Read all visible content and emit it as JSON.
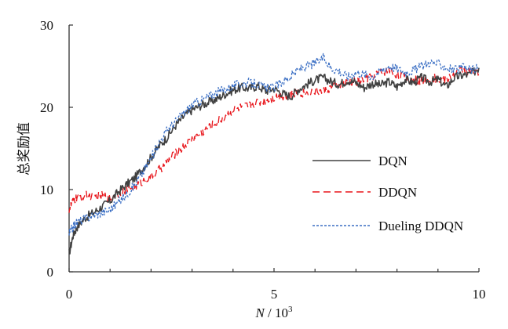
{
  "chart_data": {
    "type": "line",
    "title": "",
    "xlabel_var": "N",
    "xlabel_unit": " / 10",
    "xlabel_sup": "3",
    "ylabel": "总奖励值",
    "xlim": [
      0,
      10
    ],
    "ylim": [
      0,
      30
    ],
    "xticks": [
      0,
      5,
      10
    ],
    "yticks": [
      0,
      10,
      20,
      30
    ],
    "grid": false,
    "legend_position": "right",
    "series": [
      {
        "name": "DQN",
        "color": "#404040",
        "dash": "solid",
        "x": [
          0,
          0.1,
          0.2,
          0.4,
          0.6,
          0.8,
          1.0,
          1.2,
          1.4,
          1.6,
          1.8,
          2.0,
          2.2,
          2.4,
          2.6,
          2.8,
          3.0,
          3.2,
          3.4,
          3.6,
          3.8,
          4.0,
          4.2,
          4.4,
          4.6,
          4.8,
          5.0,
          5.2,
          5.4,
          5.6,
          5.8,
          6.0,
          6.2,
          6.4,
          6.6,
          6.8,
          7.0,
          7.2,
          7.4,
          7.6,
          7.8,
          8.0,
          8.2,
          8.4,
          8.6,
          8.8,
          9.0,
          9.2,
          9.4,
          9.6,
          9.8,
          10.0
        ],
        "y": [
          2.2,
          4.5,
          5.5,
          6.6,
          7.2,
          7.9,
          8.6,
          9.7,
          10.6,
          11.4,
          12.6,
          13.9,
          15.3,
          16.4,
          17.8,
          18.9,
          19.7,
          20.2,
          20.6,
          21.0,
          21.6,
          22.1,
          22.4,
          22.3,
          22.6,
          22.0,
          22.3,
          21.7,
          21.3,
          22.2,
          22.8,
          23.3,
          23.6,
          23.1,
          22.8,
          23.3,
          23.0,
          22.4,
          22.9,
          22.7,
          23.1,
          22.5,
          23.4,
          23.0,
          23.6,
          23.1,
          23.4,
          22.5,
          23.6,
          23.9,
          24.0,
          24.8
        ]
      },
      {
        "name": "DDQN",
        "color": "#e8141a",
        "dash": "dashed",
        "x": [
          0,
          0.1,
          0.2,
          0.4,
          0.6,
          0.8,
          1.0,
          1.2,
          1.4,
          1.6,
          1.8,
          2.0,
          2.2,
          2.4,
          2.6,
          2.8,
          3.0,
          3.2,
          3.4,
          3.6,
          3.8,
          4.0,
          4.2,
          4.4,
          4.6,
          4.8,
          5.0,
          5.2,
          5.4,
          5.6,
          5.8,
          6.0,
          6.2,
          6.4,
          6.6,
          6.8,
          7.0,
          7.2,
          7.4,
          7.6,
          7.8,
          8.0,
          8.2,
          8.4,
          8.6,
          8.8,
          9.0,
          9.2,
          9.4,
          9.6,
          9.8,
          10.0
        ],
        "y": [
          7.6,
          8.6,
          9.0,
          9.3,
          9.1,
          9.3,
          9.0,
          9.6,
          10.0,
          10.4,
          11.0,
          11.6,
          12.4,
          13.4,
          14.4,
          15.2,
          16.1,
          16.8,
          17.5,
          18.2,
          18.9,
          19.6,
          20.0,
          20.2,
          20.6,
          20.9,
          21.2,
          21.4,
          21.5,
          21.8,
          21.7,
          22.0,
          21.9,
          22.4,
          22.6,
          23.0,
          23.1,
          23.4,
          23.8,
          24.2,
          24.6,
          24.0,
          23.6,
          23.3,
          23.2,
          23.6,
          23.4,
          23.3,
          24.0,
          24.6,
          24.3,
          24.1
        ]
      },
      {
        "name": "Dueling DDQN",
        "color": "#3b6fc4",
        "dash": "dotted",
        "x": [
          0,
          0.1,
          0.2,
          0.4,
          0.6,
          0.8,
          1.0,
          1.2,
          1.4,
          1.6,
          1.8,
          2.0,
          2.2,
          2.4,
          2.6,
          2.8,
          3.0,
          3.2,
          3.4,
          3.6,
          3.8,
          4.0,
          4.2,
          4.4,
          4.6,
          4.8,
          5.0,
          5.2,
          5.4,
          5.6,
          5.8,
          6.0,
          6.2,
          6.4,
          6.6,
          6.8,
          7.0,
          7.2,
          7.4,
          7.6,
          7.8,
          8.0,
          8.2,
          8.4,
          8.6,
          8.8,
          9.0,
          9.2,
          9.4,
          9.6,
          9.8,
          10.0
        ],
        "y": [
          4.6,
          5.5,
          6.0,
          6.5,
          6.9,
          7.2,
          7.6,
          8.5,
          9.4,
          10.6,
          12.1,
          13.8,
          15.8,
          17.3,
          18.3,
          19.3,
          20.3,
          20.8,
          21.3,
          21.8,
          22.2,
          22.6,
          22.9,
          23.0,
          22.8,
          22.3,
          22.4,
          23.1,
          23.7,
          24.6,
          25.0,
          25.4,
          26.0,
          24.8,
          24.4,
          23.7,
          24.3,
          24.0,
          23.8,
          24.4,
          25.1,
          24.7,
          24.3,
          24.5,
          25.0,
          25.5,
          25.3,
          24.9,
          24.5,
          24.8,
          24.6,
          24.7
        ]
      }
    ]
  }
}
